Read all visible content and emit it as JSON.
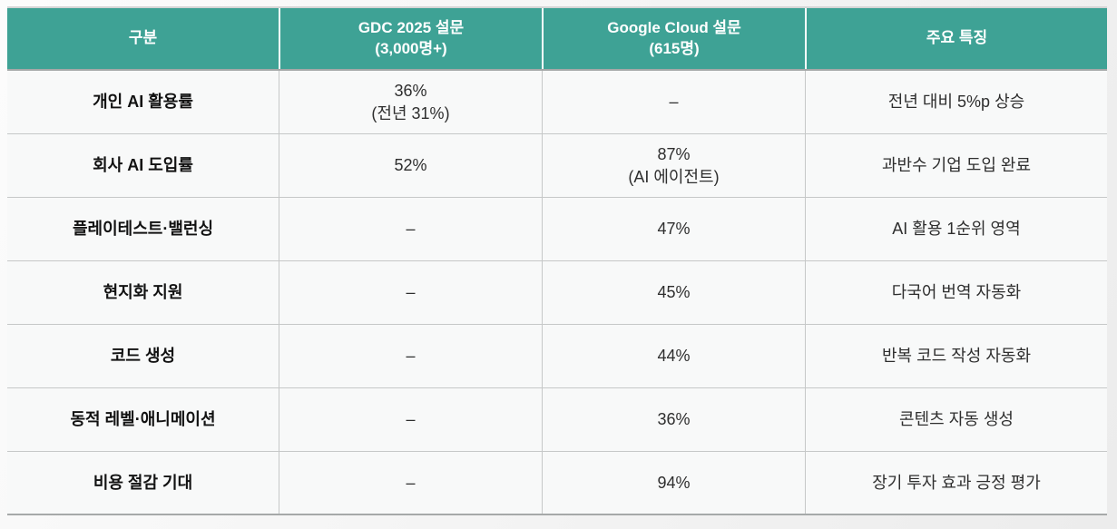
{
  "chart_data": {
    "type": "table",
    "columns": [
      {
        "label": "구분",
        "sub": ""
      },
      {
        "label": "GDC 2025 설문",
        "sub": "(3,000명+)"
      },
      {
        "label": "Google Cloud 설문",
        "sub": "(615명)"
      },
      {
        "label": "주요 특징",
        "sub": ""
      }
    ],
    "rows": [
      {
        "category": "개인 AI 활용률",
        "gdc_value": "36%",
        "gdc_note": "(전년 31%)",
        "gcloud_value": "–",
        "gcloud_note": "",
        "feature": "전년 대비 5%p 상승"
      },
      {
        "category": "회사 AI 도입률",
        "gdc_value": "52%",
        "gdc_note": "",
        "gcloud_value": "87%",
        "gcloud_note": "(AI 에이전트)",
        "feature": "과반수 기업 도입 완료"
      },
      {
        "category": "플레이테스트·밸런싱",
        "gdc_value": "–",
        "gdc_note": "",
        "gcloud_value": "47%",
        "gcloud_note": "",
        "feature": "AI 활용 1순위 영역"
      },
      {
        "category": "현지화 지원",
        "gdc_value": "–",
        "gdc_note": "",
        "gcloud_value": "45%",
        "gcloud_note": "",
        "feature": "다국어 번역 자동화"
      },
      {
        "category": "코드 생성",
        "gdc_value": "–",
        "gdc_note": "",
        "gcloud_value": "44%",
        "gcloud_note": "",
        "feature": "반복 코드 작성 자동화"
      },
      {
        "category": "동적 레벨·애니메이션",
        "gdc_value": "–",
        "gdc_note": "",
        "gcloud_value": "36%",
        "gcloud_note": "",
        "feature": "콘텐츠 자동 생성"
      },
      {
        "category": "비용 절감 기대",
        "gdc_value": "–",
        "gdc_note": "",
        "gcloud_value": "94%",
        "gcloud_note": "",
        "feature": "장기 투자 효과 긍정 평가"
      }
    ],
    "colors": {
      "header_bg": "#3EA295",
      "header_text": "#FFFFFF",
      "grid_line": "#C6C8C8",
      "cell_bg": "#F8F9F9",
      "body_text": "#2E2E2E",
      "category_text": "#121212"
    }
  }
}
